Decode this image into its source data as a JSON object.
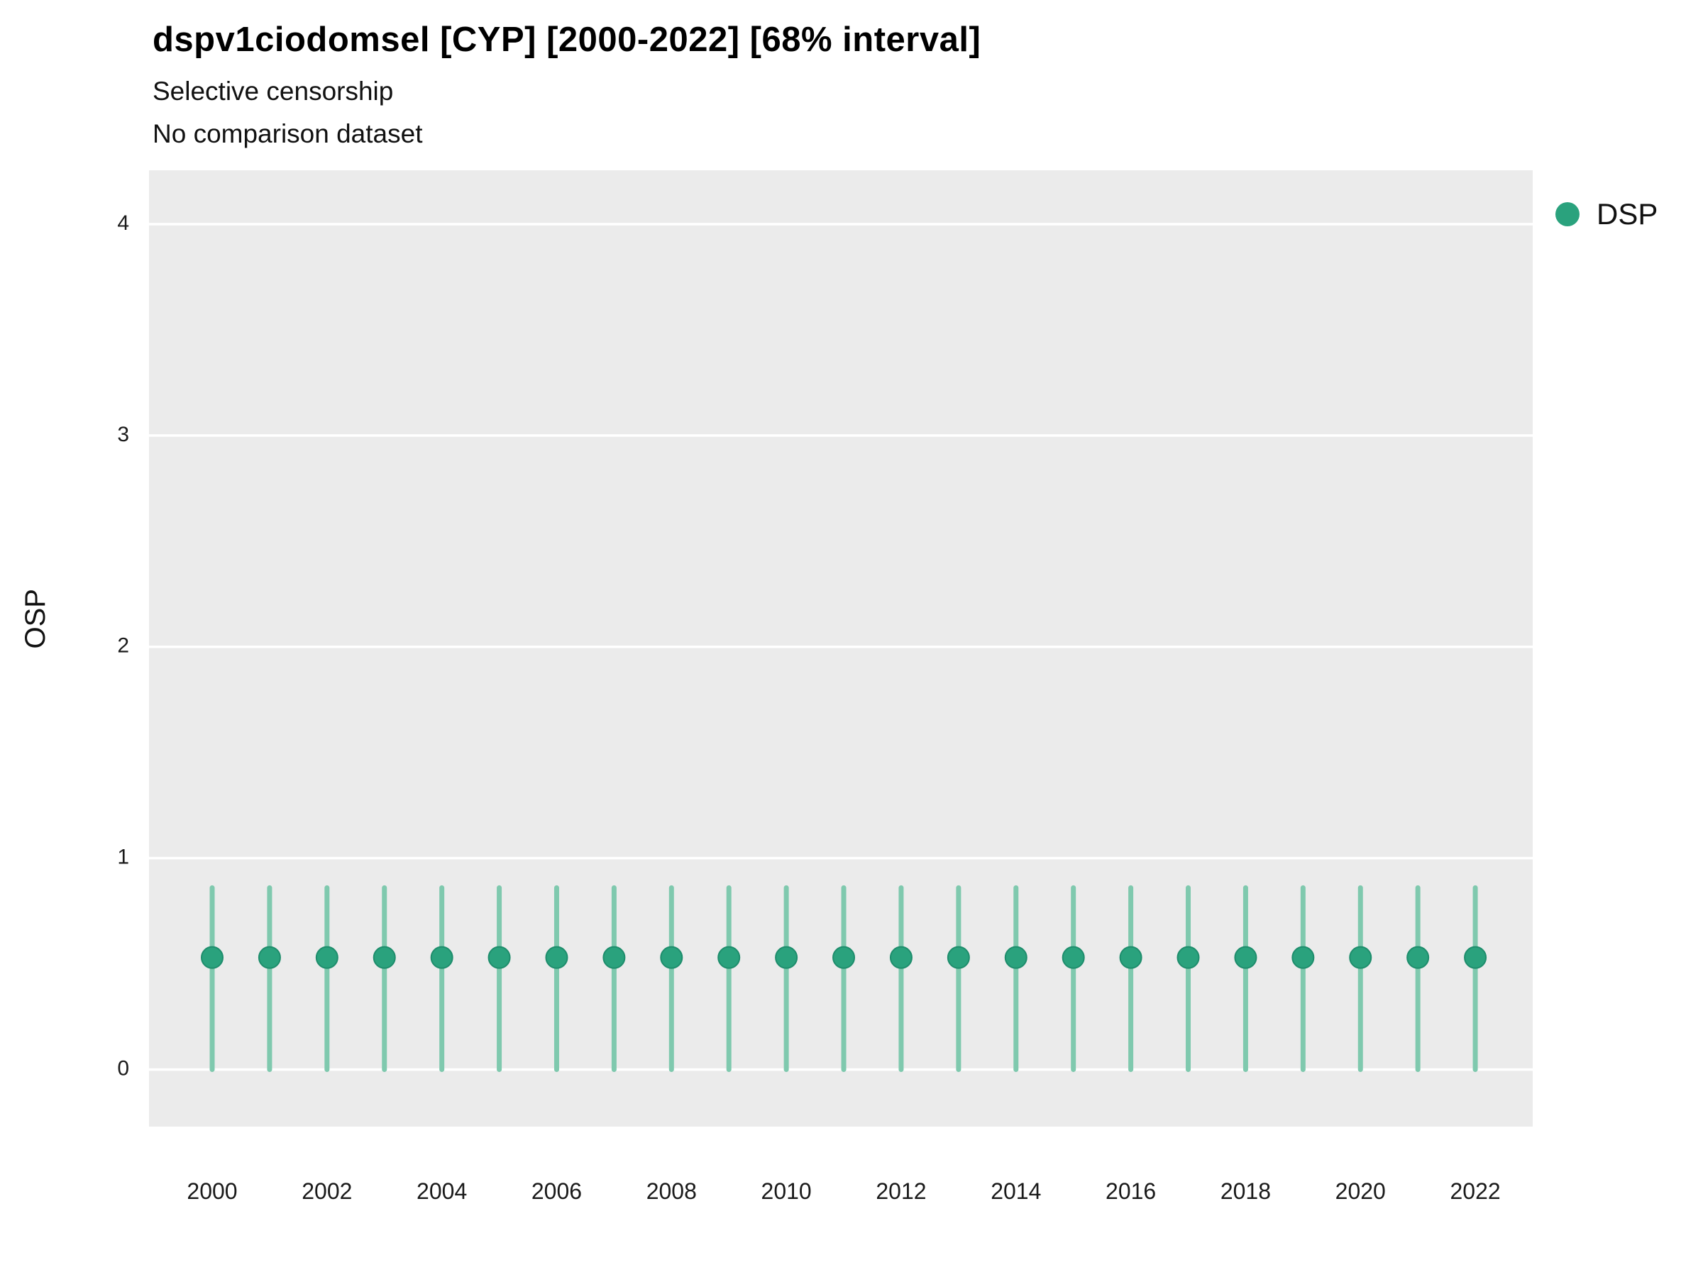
{
  "chart_data": {
    "type": "scatter",
    "title": "dspv1ciodomsel [CYP] [2000-2022] [68% interval]",
    "subtitle_1": "Selective censorship",
    "subtitle_2": "No comparison dataset",
    "xlabel": "",
    "ylabel": "OSP",
    "x": [
      2000,
      2001,
      2002,
      2003,
      2004,
      2005,
      2006,
      2007,
      2008,
      2009,
      2010,
      2011,
      2012,
      2013,
      2014,
      2015,
      2016,
      2017,
      2018,
      2019,
      2020,
      2021,
      2022
    ],
    "series": [
      {
        "name": "DSP",
        "values": [
          0.53,
          0.53,
          0.53,
          0.53,
          0.53,
          0.53,
          0.53,
          0.53,
          0.53,
          0.53,
          0.53,
          0.53,
          0.53,
          0.53,
          0.53,
          0.53,
          0.53,
          0.53,
          0.53,
          0.53,
          0.53,
          0.53,
          0.53
        ],
        "lower": [
          0.0,
          0.0,
          0.0,
          0.0,
          0.0,
          0.0,
          0.0,
          0.0,
          0.0,
          0.0,
          0.0,
          0.0,
          0.0,
          0.0,
          0.0,
          0.0,
          0.0,
          0.0,
          0.0,
          0.0,
          0.0,
          0.0,
          0.0
        ],
        "upper": [
          0.86,
          0.86,
          0.86,
          0.86,
          0.86,
          0.86,
          0.86,
          0.86,
          0.86,
          0.86,
          0.86,
          0.86,
          0.86,
          0.86,
          0.86,
          0.86,
          0.86,
          0.86,
          0.86,
          0.86,
          0.86,
          0.86,
          0.86
        ],
        "color": "#2aa27d",
        "errorbar_color": "#7fc9ae"
      }
    ],
    "interval_label": "68% interval",
    "xticks": [
      2000,
      2002,
      2004,
      2006,
      2008,
      2010,
      2012,
      2014,
      2016,
      2018,
      2020,
      2022
    ],
    "yticks": [
      0,
      1,
      2,
      3,
      4
    ],
    "ylim": [
      -0.27,
      4.255
    ],
    "xlim": [
      1998.9,
      2023.0
    ],
    "grid": true,
    "legend_position": "right",
    "colors": {
      "panel_background": "#ebebeb",
      "gridline": "#ffffff",
      "tick_label": "#1a1a1a"
    }
  }
}
